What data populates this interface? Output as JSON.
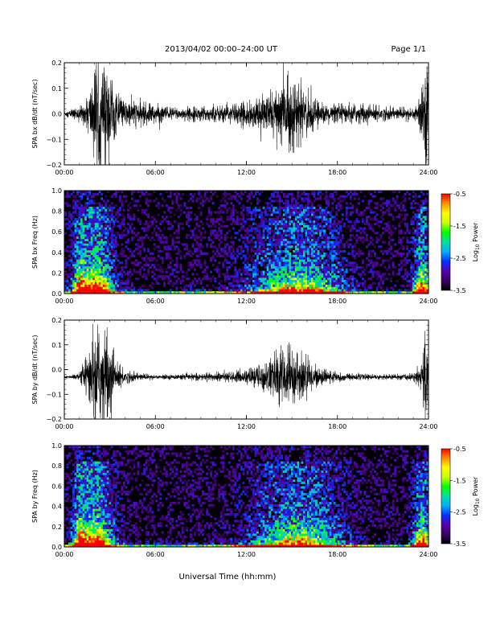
{
  "header": {
    "title": "2013/04/02  00:00–24:00 UT",
    "page": "Page 1/1"
  },
  "xlabel": "Universal Time (hh:mm)",
  "colorbar": {
    "label_prefix": "Log",
    "label_sub": "10",
    "label_suffix": " Power",
    "ticks": [
      "-0.5",
      "-1.5",
      "-2.5",
      "-3.5"
    ],
    "range": [
      -3.5,
      -0.5
    ],
    "colors": [
      "#000000",
      "#3a0068",
      "#5a00b0",
      "#0030ff",
      "#00b0ff",
      "#00e0a0",
      "#00ff00",
      "#c8ff00",
      "#ffff00",
      "#ff9000",
      "#ff0000"
    ]
  },
  "chart_data": [
    {
      "type": "line",
      "ylabel": "SPA bx dB/dt (nT/sec)",
      "xlim": [
        "00:00",
        "24:00"
      ],
      "xticks": [
        "00:00",
        "06:00",
        "12:00",
        "18:00",
        "24:00"
      ],
      "ylim": [
        -0.2,
        0.2
      ],
      "yticks": [
        "0.2",
        "0.1",
        "0.0",
        "−0.1",
        "−0.2"
      ],
      "baseline": 0.0,
      "envelope": {
        "x": [
          "00:00",
          "00:30",
          "01:00",
          "01:30",
          "02:00",
          "02:30",
          "03:00",
          "03:30",
          "04:00",
          "05:00",
          "06:00",
          "07:00",
          "08:00",
          "09:00",
          "10:00",
          "11:00",
          "12:00",
          "12:30",
          "13:00",
          "13:30",
          "14:00",
          "14:30",
          "15:00",
          "15:30",
          "16:00",
          "16:30",
          "17:00",
          "18:00",
          "19:00",
          "20:00",
          "21:00",
          "22:00",
          "23:00",
          "23:30",
          "23:50",
          "24:00"
        ],
        "amplitude": [
          0.01,
          0.02,
          0.03,
          0.06,
          0.21,
          0.21,
          0.2,
          0.07,
          0.06,
          0.05,
          0.04,
          0.03,
          0.025,
          0.03,
          0.035,
          0.04,
          0.05,
          0.06,
          0.07,
          0.09,
          0.12,
          0.16,
          0.15,
          0.12,
          0.1,
          0.06,
          0.04,
          0.035,
          0.04,
          0.04,
          0.03,
          0.025,
          0.03,
          0.08,
          0.21,
          0.21
        ]
      }
    },
    {
      "type": "heatmap",
      "ylabel": "SPA bx Freq (Hz)",
      "xlim": [
        "00:00",
        "24:00"
      ],
      "xticks": [
        "00:00",
        "06:00",
        "12:00",
        "18:00",
        "24:00"
      ],
      "ylim": [
        0.0,
        1.0
      ],
      "yticks": [
        "1.0",
        "0.8",
        "0.6",
        "0.4",
        "0.2",
        "0.0"
      ],
      "zlim": [
        -3.5,
        -0.5
      ]
    },
    {
      "type": "line",
      "ylabel": "SPA by dB/dt (nT/sec)",
      "xlim": [
        "00:00",
        "24:00"
      ],
      "xticks": [
        "00:00",
        "06:00",
        "12:00",
        "18:00",
        "24:00"
      ],
      "ylim": [
        -0.2,
        0.2
      ],
      "yticks": [
        "0.2",
        "0.1",
        "0.0",
        "−0.1",
        "−0.2"
      ],
      "baseline": -0.03,
      "envelope": {
        "x": [
          "00:00",
          "00:30",
          "01:00",
          "01:30",
          "02:00",
          "02:30",
          "03:00",
          "03:30",
          "04:00",
          "05:00",
          "06:00",
          "07:00",
          "08:00",
          "09:00",
          "10:00",
          "11:00",
          "12:00",
          "12:30",
          "13:00",
          "13:30",
          "14:00",
          "14:30",
          "15:00",
          "15:30",
          "16:00",
          "16:30",
          "17:00",
          "18:00",
          "19:00",
          "20:00",
          "21:00",
          "22:00",
          "23:00",
          "23:30",
          "23:50",
          "24:00"
        ],
        "amplitude": [
          0.005,
          0.008,
          0.02,
          0.08,
          0.21,
          0.21,
          0.18,
          0.06,
          0.03,
          0.015,
          0.01,
          0.01,
          0.012,
          0.015,
          0.02,
          0.02,
          0.03,
          0.05,
          0.06,
          0.08,
          0.11,
          0.13,
          0.13,
          0.1,
          0.08,
          0.05,
          0.03,
          0.02,
          0.015,
          0.012,
          0.01,
          0.012,
          0.015,
          0.06,
          0.19,
          0.19
        ]
      }
    },
    {
      "type": "heatmap",
      "ylabel": "SPA by Freq (Hz)",
      "xlim": [
        "00:00",
        "24:00"
      ],
      "xticks": [
        "00:00",
        "06:00",
        "12:00",
        "18:00",
        "24:00"
      ],
      "ylim": [
        0.0,
        1.0
      ],
      "yticks": [
        "1.0",
        "0.8",
        "0.6",
        "0.4",
        "0.2",
        "0.0"
      ],
      "zlim": [
        -3.5,
        -0.5
      ]
    }
  ]
}
